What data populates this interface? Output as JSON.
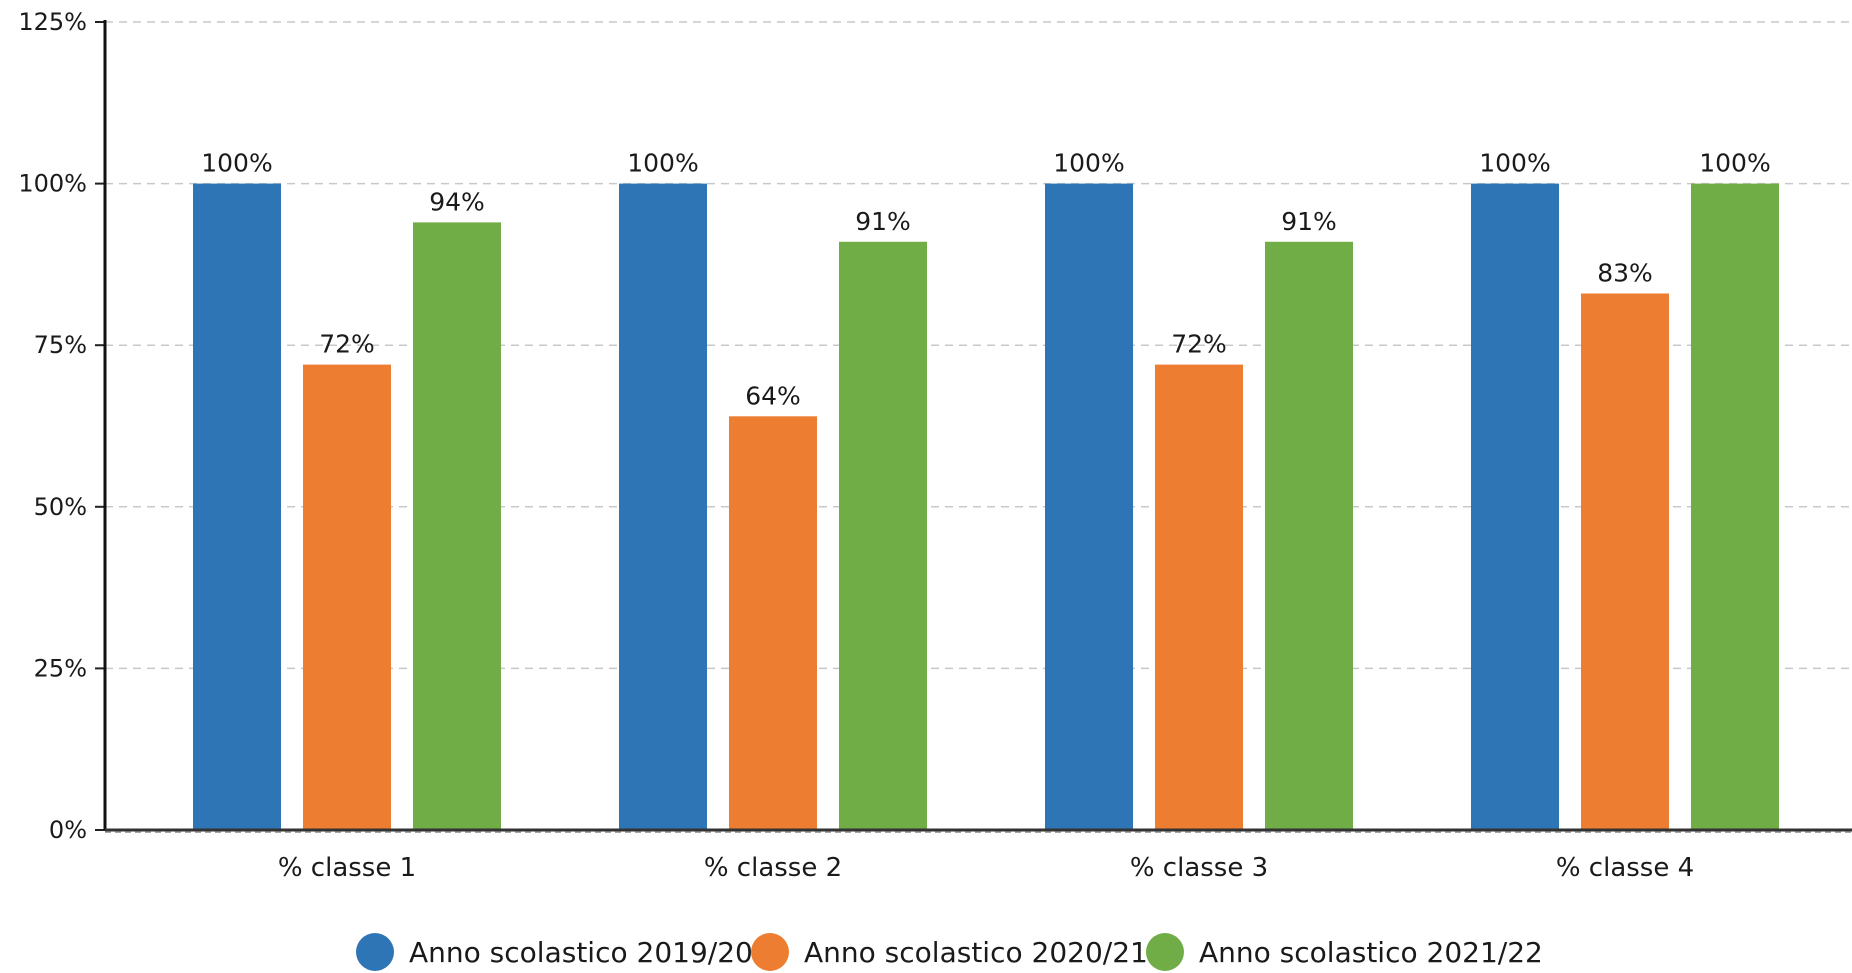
{
  "chart_data": {
    "type": "bar",
    "title": "",
    "xlabel": "",
    "ylabel": "",
    "categories": [
      "% classe 1",
      "% classe 2",
      "% classe 3",
      "% classe 4"
    ],
    "series": [
      {
        "name": "Anno scolastico 2019/20",
        "color": "#2e75b6",
        "values": [
          100,
          100,
          100,
          100
        ],
        "labels": [
          "100%",
          "100%",
          "100%",
          "100%"
        ]
      },
      {
        "name": "Anno scolastico 2020/21",
        "color": "#ed7d31",
        "values": [
          72,
          64,
          72,
          83
        ],
        "labels": [
          "72%",
          "64%",
          "72%",
          "83%"
        ]
      },
      {
        "name": "Anno scolastico 2021/22",
        "color": "#70ad47",
        "values": [
          94,
          91,
          91,
          100
        ],
        "labels": [
          "94%",
          "91%",
          "91%",
          "100%"
        ]
      }
    ],
    "ylim": [
      0,
      125
    ],
    "yticks": [
      0,
      25,
      50,
      75,
      100,
      125
    ],
    "ytick_labels": [
      "0%",
      "25%",
      "50%",
      "75%",
      "100%",
      "125%"
    ],
    "grid": true,
    "grid_style": "dashed",
    "legend_position": "bottom"
  }
}
